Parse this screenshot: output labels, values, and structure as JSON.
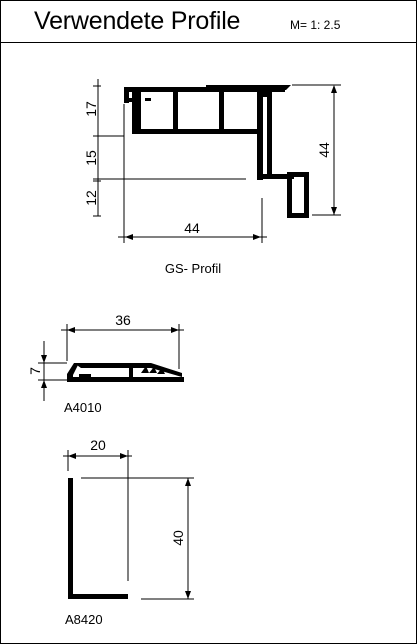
{
  "header": {
    "title": "Verwendete Profile",
    "scale": "M= 1: 2.5"
  },
  "profiles": [
    {
      "caption": "GS- Profil",
      "dimensions": {
        "width": "44",
        "height": "44",
        "seg_top": "17",
        "seg_mid": "15",
        "seg_bottom": "12"
      }
    },
    {
      "caption": "A4010",
      "dimensions": {
        "width": "36",
        "height": "7"
      }
    },
    {
      "caption": "A8420",
      "dimensions": {
        "width": "20",
        "height": "40"
      }
    }
  ]
}
